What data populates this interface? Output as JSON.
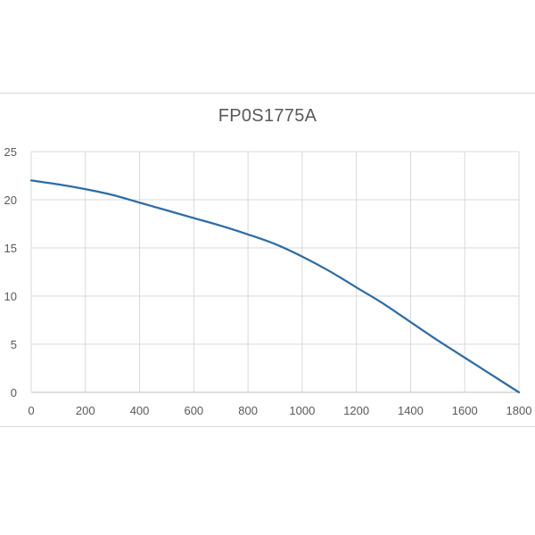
{
  "chart_data": {
    "type": "line",
    "title": "FP0S1775A",
    "xlabel": "",
    "ylabel": "",
    "xlim": [
      0,
      1800
    ],
    "ylim": [
      0,
      25
    ],
    "x_ticks": [
      0,
      200,
      400,
      600,
      800,
      1000,
      1200,
      1400,
      1600,
      1800
    ],
    "y_ticks": [
      0,
      5,
      10,
      15,
      20,
      25
    ],
    "grid": true,
    "legend": "none",
    "series": [
      {
        "color": "#2e6ca4",
        "points": [
          {
            "x": 0,
            "y": 22.0
          },
          {
            "x": 100,
            "y": 21.6
          },
          {
            "x": 200,
            "y": 21.1
          },
          {
            "x": 300,
            "y": 20.5
          },
          {
            "x": 400,
            "y": 19.7
          },
          {
            "x": 500,
            "y": 18.9
          },
          {
            "x": 600,
            "y": 18.1
          },
          {
            "x": 700,
            "y": 17.3
          },
          {
            "x": 800,
            "y": 16.4
          },
          {
            "x": 900,
            "y": 15.4
          },
          {
            "x": 1000,
            "y": 14.1
          },
          {
            "x": 1100,
            "y": 12.6
          },
          {
            "x": 1200,
            "y": 10.9
          },
          {
            "x": 1300,
            "y": 9.2
          },
          {
            "x": 1400,
            "y": 7.3
          },
          {
            "x": 1500,
            "y": 5.4
          },
          {
            "x": 1600,
            "y": 3.6
          },
          {
            "x": 1700,
            "y": 1.8
          },
          {
            "x": 1800,
            "y": 0.0
          }
        ]
      }
    ]
  }
}
